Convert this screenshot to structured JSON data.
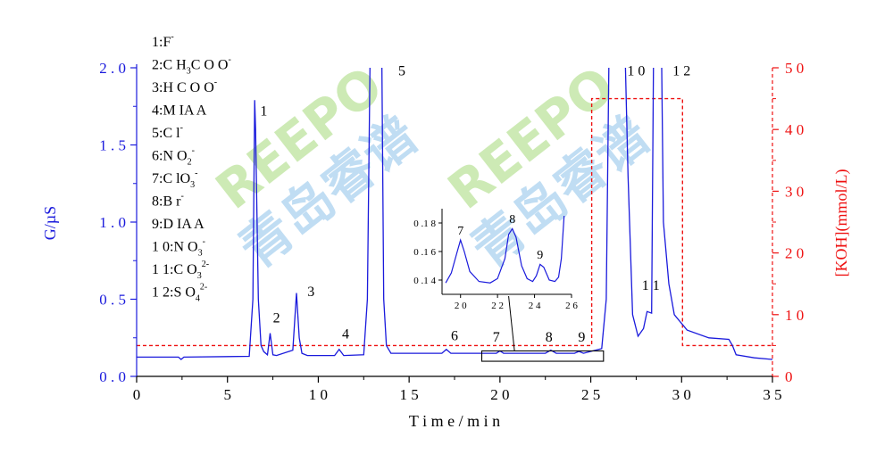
{
  "chart_data": {
    "type": "line",
    "xlabel": "T i m e / m i n",
    "ylabel": "G/µS",
    "y2label": "[KOH](mmol/L)",
    "xlim": [
      0,
      35
    ],
    "ylim": [
      0,
      2.0
    ],
    "y2lim": [
      0,
      50
    ],
    "xticks": [
      "0",
      "5",
      "1 0",
      "1 5",
      "2 0",
      "2 5",
      "3 0",
      "3 5"
    ],
    "yticks": [
      "0 . 0",
      "0 . 5",
      "1 . 0",
      "1 . 5",
      "2 . 0"
    ],
    "y2ticks": [
      "0",
      "1 0",
      "2 0",
      "3 0",
      "4 0",
      "5 0"
    ],
    "colors": {
      "signal": "#1a1adc",
      "gradient": "#ee1111",
      "axis_left": "#1a1adc",
      "axis_right": "#ee1111"
    },
    "series": [
      {
        "type": "line",
        "x": [
          0,
          2.3,
          2.45,
          2.6,
          6.2,
          6.4,
          6.5,
          6.55,
          6.7,
          6.85,
          7.0,
          7.2,
          7.35,
          7.5,
          7.7,
          8.6,
          8.8,
          8.95,
          9.1,
          9.4,
          10.9,
          11.15,
          11.4,
          12.5,
          12.7,
          12.85,
          13.0,
          13.5,
          13.6,
          13.75,
          14.0,
          16.8,
          17.05,
          17.3,
          19.8,
          20.0,
          20.2,
          22.5,
          22.8,
          23.1,
          24.1,
          24.35,
          24.6,
          25.6,
          25.85,
          26.0,
          26.9,
          27.05,
          27.3,
          27.6,
          27.9,
          28.1,
          28.35,
          28.45,
          28.6,
          28.9,
          29.0,
          29.3,
          29.6,
          30.3,
          31.5,
          32.6,
          32.8,
          33.0,
          34.0,
          35.0
        ],
        "y": [
          0.125,
          0.125,
          0.11,
          0.125,
          0.13,
          0.5,
          1.79,
          1.6,
          0.5,
          0.2,
          0.16,
          0.14,
          0.28,
          0.14,
          0.135,
          0.17,
          0.54,
          0.25,
          0.15,
          0.135,
          0.135,
          0.175,
          0.135,
          0.14,
          0.5,
          2.05,
          2.05,
          2.05,
          0.5,
          0.2,
          0.15,
          0.15,
          0.175,
          0.15,
          0.15,
          0.165,
          0.15,
          0.15,
          0.17,
          0.15,
          0.15,
          0.162,
          0.15,
          0.18,
          0.5,
          2.05,
          2.05,
          1.3,
          0.4,
          0.26,
          0.31,
          0.42,
          0.41,
          2.05,
          2.05,
          2.05,
          1.0,
          0.6,
          0.4,
          0.3,
          0.25,
          0.24,
          0.2,
          0.14,
          0.12,
          0.11
        ]
      },
      {
        "type": "line",
        "axis": "right",
        "x": [
          0,
          25.05,
          25.05,
          30.05,
          30.05,
          35
        ],
        "y": [
          5,
          5,
          45,
          45,
          5,
          5
        ]
      }
    ],
    "peak_labels": [
      {
        "text": "1",
        "x": 7.0,
        "y": 1.69
      },
      {
        "text": "2",
        "x": 7.7,
        "y": 0.35
      },
      {
        "text": "3",
        "x": 9.6,
        "y": 0.52
      },
      {
        "text": "4",
        "x": 11.5,
        "y": 0.245
      },
      {
        "text": "5",
        "x": 14.6,
        "y": 1.95
      },
      {
        "text": "6",
        "x": 17.5,
        "y": 0.235
      },
      {
        "text": "7",
        "x": 19.8,
        "y": 0.225
      },
      {
        "text": "8",
        "x": 22.7,
        "y": 0.225
      },
      {
        "text": "9",
        "x": 24.5,
        "y": 0.225
      },
      {
        "text": "1 0",
        "x": 27.5,
        "y": 1.95
      },
      {
        "text": "1 2",
        "x": 30.0,
        "y": 1.95
      },
      {
        "text": "1 1",
        "x": 28.3,
        "y": 0.56
      }
    ],
    "legend": [
      {
        "num": "1:",
        "species": "F",
        "sub": "",
        "sup": "-"
      },
      {
        "num": "2:",
        "species": "C H",
        "sub": "3",
        "rest": "C O O",
        "sup": "-"
      },
      {
        "num": "3:",
        "species": "H C O O",
        "sub": "",
        "sup": "-"
      },
      {
        "num": "4:",
        "species": "M IA A",
        "sub": "",
        "sup": ""
      },
      {
        "num": "5:",
        "species": "C l",
        "sub": "",
        "sup": "-"
      },
      {
        "num": "6:",
        "species": "N O",
        "sub": "2",
        "sup": "-"
      },
      {
        "num": "7:",
        "species": "C lO",
        "sub": "3",
        "sup": "-"
      },
      {
        "num": "8:",
        "species": "B r",
        "sub": "",
        "sup": "-"
      },
      {
        "num": "9:",
        "species": "D IA A",
        "sub": "",
        "sup": ""
      },
      {
        "num": "1 0:",
        "species": "N O",
        "sub": "3",
        "sup": "-"
      },
      {
        "num": "1 1:",
        "species": "C O",
        "sub": "3",
        "sup": "2-"
      },
      {
        "num": "1 2:",
        "species": "S O",
        "sub": "4",
        "sup": "2-"
      }
    ],
    "inset": {
      "xlim": [
        19,
        26
      ],
      "ylim": [
        0.13,
        0.19
      ],
      "xticks": [
        "2 0",
        "2 2",
        "2 4",
        "2 6"
      ],
      "yticks": [
        "0 .1 4",
        "0 .1 6",
        "0 .1 8"
      ],
      "zoom_box": {
        "x": [
          19,
          25.7
        ],
        "y": [
          0.098,
          0.165
        ]
      },
      "series": {
        "x": [
          19.2,
          19.5,
          19.8,
          20.0,
          20.2,
          20.5,
          21.0,
          21.6,
          22.0,
          22.4,
          22.6,
          22.8,
          23.0,
          23.3,
          23.6,
          23.9,
          24.1,
          24.3,
          24.5,
          24.8,
          25.1,
          25.3,
          25.45,
          25.6
        ],
        "y": [
          0.138,
          0.145,
          0.159,
          0.168,
          0.16,
          0.146,
          0.139,
          0.138,
          0.141,
          0.155,
          0.172,
          0.176,
          0.17,
          0.15,
          0.141,
          0.139,
          0.143,
          0.151,
          0.149,
          0.14,
          0.139,
          0.142,
          0.155,
          0.185
        ]
      },
      "labels": [
        {
          "text": "7",
          "x": 20.0,
          "y": 0.172
        },
        {
          "text": "8",
          "x": 22.8,
          "y": 0.18
        },
        {
          "text": "9",
          "x": 24.3,
          "y": 0.155
        }
      ]
    },
    "watermark": [
      {
        "text": "REEPO",
        "color": "#a6d97a"
      },
      {
        "text": "青岛睿谱",
        "color": "#8ec3ea"
      }
    ]
  }
}
